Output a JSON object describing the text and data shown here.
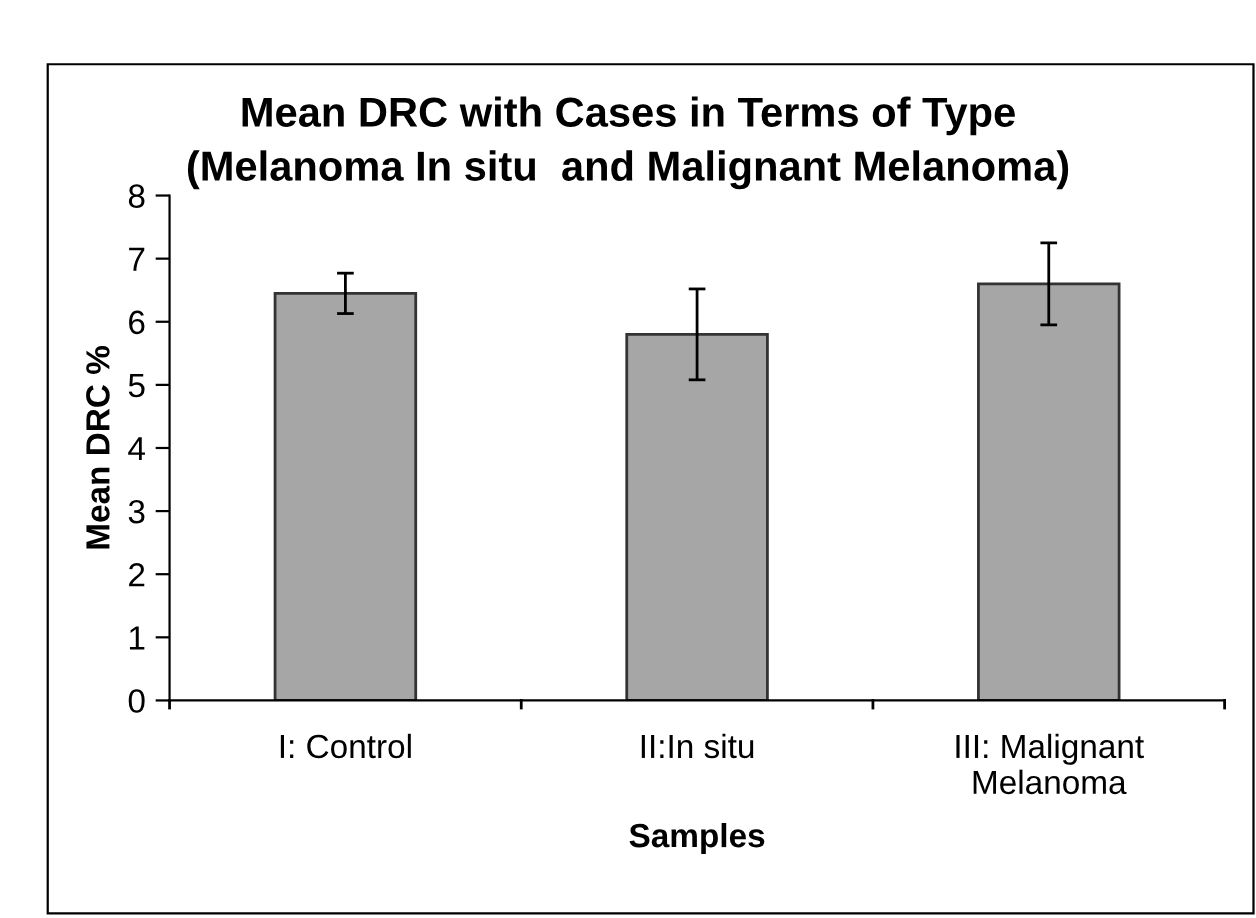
{
  "chart_data": {
    "type": "bar",
    "title": "Mean DRC with Cases in Terms of Type\n(Melanoma In situ  and Malignant Melanoma)",
    "xlabel": "Samples",
    "ylabel": "Mean DRC %",
    "categories": [
      "I: Control",
      "II:In situ",
      "III: Malignant\nMelanoma"
    ],
    "values": [
      6.45,
      5.8,
      6.6
    ],
    "errors": [
      0.32,
      0.72,
      0.65
    ],
    "color": "#a6a6a6",
    "ylim": [
      0,
      8
    ],
    "yticks": [
      0,
      1,
      2,
      3,
      4,
      5,
      6,
      7,
      8
    ],
    "grid": false,
    "legend": false
  }
}
